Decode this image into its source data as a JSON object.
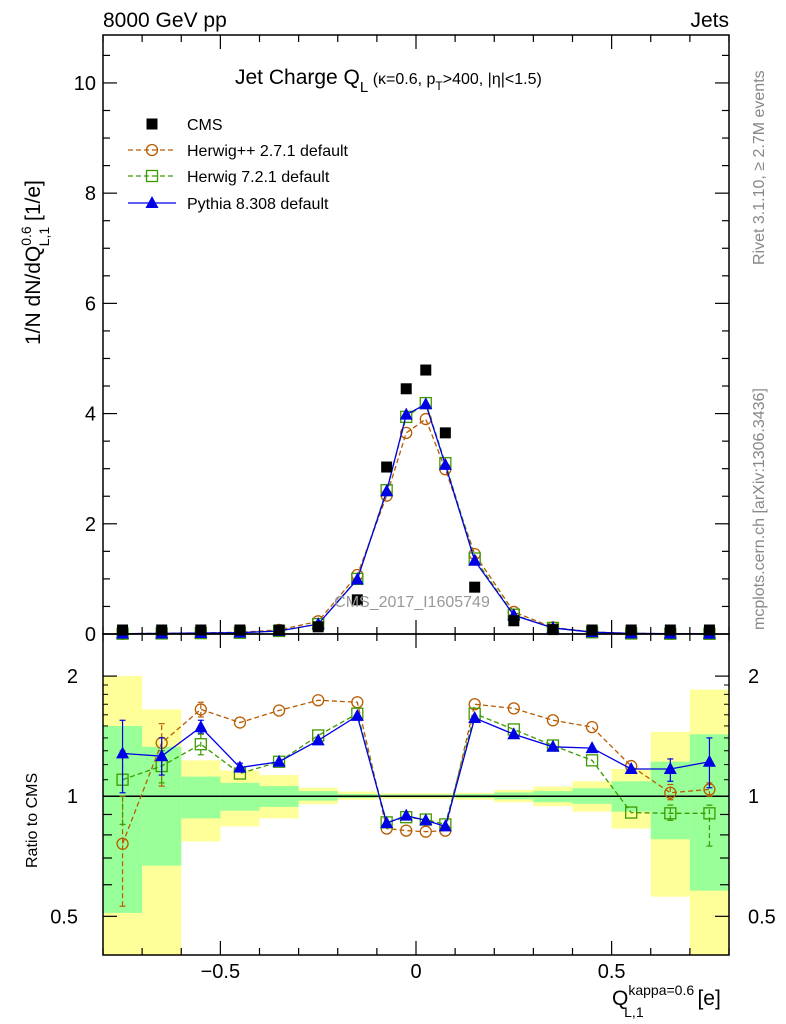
{
  "header": {
    "left": "8000 GeV pp",
    "right": "Jets"
  },
  "side": {
    "rivet": "Rivet 3.1.10, ≥ 2.7M events",
    "mcplots": "mcplots.cern.ch [arXiv:1306.3436]"
  },
  "watermark": "CMS_2017_I1605749",
  "colors": {
    "cms": "#000000",
    "herwigpp": "#b85c00",
    "herwig7": "#3c9a00",
    "pythia": "#0000e6",
    "band_total": "#ffff99",
    "band_stat": "#99ff99"
  },
  "chart_data": {
    "type": "scatter",
    "title_parts": {
      "a": "Jet Charge Q",
      "a_sub": "L",
      "b": " (κ=0.6, p",
      "b_sub": "T",
      "c": ">400, |η|<1.5)"
    },
    "ylabel_parts": {
      "a": "1/N dN/dQ",
      "sup": "0.6",
      "sub": "L,1",
      "b": " [1/e]"
    },
    "xlabel_parts": {
      "a": "Q",
      "sup": "kappa=0.6",
      "sub": "L,1",
      "b": " [e]"
    },
    "ratio_ylabel": "Ratio to CMS",
    "xlim": [
      -0.8,
      0.8
    ],
    "ylim": [
      0,
      10.87
    ],
    "ratio_ylim": [
      0.4,
      2.55
    ],
    "ratio_scale": "log",
    "x_ticks": [
      "−0.5",
      "0",
      "0.5"
    ],
    "x_tick_values": [
      -0.5,
      0,
      0.5
    ],
    "y_ticks": [
      "0",
      "2",
      "4",
      "6",
      "8",
      "10"
    ],
    "y_tick_values": [
      0,
      2,
      4,
      6,
      8,
      10
    ],
    "ratio_ticks": [
      "2",
      "1",
      "0.5"
    ],
    "ratio_tick_values": [
      2,
      1,
      0.5
    ],
    "legend_placement": "top-left",
    "bin_edges": [
      -0.8,
      -0.7,
      -0.6,
      -0.5,
      -0.4,
      -0.3,
      -0.2,
      -0.1,
      -0.05,
      0,
      0.05,
      0.1,
      0.2,
      0.3,
      0.4,
      0.5,
      0.6,
      0.7,
      0.8
    ],
    "data": {
      "name": "CMS",
      "values": [
        0.005,
        0.008,
        0.012,
        0.02,
        0.045,
        0.13,
        0.62,
        3.03,
        4.45,
        4.79,
        3.65,
        0.85,
        0.24,
        0.08,
        0.025,
        0.01,
        0.005,
        0.003
      ]
    },
    "series": [
      {
        "key": "herwigpp",
        "name": "Herwig++ 2.7.1 default",
        "marker": "circle",
        "dashed": true,
        "values": [
          0.004,
          0.011,
          0.02,
          0.031,
          0.074,
          0.23,
          1.07,
          2.51,
          3.65,
          3.9,
          2.99,
          1.45,
          0.4,
          0.12,
          0.037,
          0.012,
          0.005,
          0.003
        ],
        "ratio": [
          0.76,
          1.36,
          1.65,
          1.53,
          1.64,
          1.74,
          1.72,
          0.83,
          0.82,
          0.815,
          0.82,
          1.7,
          1.66,
          1.55,
          1.49,
          1.19,
          1.02,
          1.04
        ],
        "ratio_err": [
          [
            0.53,
            1.0
          ],
          [
            1.06,
            1.52
          ],
          [
            1.58,
            1.72
          ],
          null,
          null,
          null,
          null,
          null,
          null,
          null,
          null,
          null,
          null,
          null,
          null,
          null,
          [
            0.98,
            1.07
          ],
          [
            1.0,
            1.08
          ]
        ]
      },
      {
        "key": "herwig7",
        "name": "Herwig 7.2.1 default",
        "marker": "square",
        "dashed": true,
        "values": [
          0.006,
          0.01,
          0.016,
          0.023,
          0.055,
          0.18,
          1.0,
          2.61,
          3.94,
          4.19,
          3.1,
          1.37,
          0.35,
          0.11,
          0.031,
          0.009,
          0.0045,
          0.0027
        ],
        "ratio": [
          1.1,
          1.19,
          1.35,
          1.14,
          1.22,
          1.42,
          1.61,
          0.86,
          0.886,
          0.874,
          0.85,
          1.61,
          1.47,
          1.34,
          1.23,
          0.91,
          0.906,
          0.906
        ],
        "ratio_err": [
          [
            0.85,
            1.3
          ],
          [
            1.08,
            1.3
          ],
          [
            1.27,
            1.43
          ],
          null,
          null,
          null,
          null,
          null,
          null,
          null,
          null,
          null,
          null,
          null,
          null,
          null,
          [
            0.87,
            0.95
          ],
          [
            0.75,
            0.95
          ]
        ]
      },
      {
        "key": "pythia",
        "name": "Pythia 8.308 default",
        "marker": "triangle",
        "dashed": false,
        "values": [
          0.006,
          0.01,
          0.018,
          0.024,
          0.055,
          0.18,
          0.99,
          2.59,
          3.98,
          4.17,
          3.07,
          1.33,
          0.34,
          0.11,
          0.033,
          0.012,
          0.006,
          0.004
        ],
        "ratio": [
          1.28,
          1.26,
          1.49,
          1.18,
          1.22,
          1.38,
          1.59,
          0.856,
          0.894,
          0.87,
          0.84,
          1.57,
          1.43,
          1.33,
          1.32,
          1.17,
          1.17,
          1.22
        ],
        "ratio_err": [
          [
            1.02,
            1.55
          ],
          [
            1.13,
            1.4
          ],
          [
            1.44,
            1.55
          ],
          [
            1.15,
            1.21
          ],
          null,
          null,
          null,
          null,
          null,
          null,
          null,
          null,
          null,
          null,
          null,
          null,
          [
            1.09,
            1.24
          ],
          [
            1.05,
            1.4
          ]
        ]
      }
    ],
    "band_total": [
      [
        0.4,
        2.0
      ],
      [
        0.4,
        1.65
      ],
      [
        0.77,
        1.23
      ],
      [
        0.84,
        1.16
      ],
      [
        0.88,
        1.13
      ],
      [
        0.955,
        1.05
      ],
      [
        0.98,
        1.027
      ],
      [
        0.985,
        1.017
      ],
      [
        0.985,
        1.017
      ],
      [
        0.985,
        1.017
      ],
      [
        0.985,
        1.017
      ],
      [
        0.98,
        1.02
      ],
      [
        0.966,
        1.037
      ],
      [
        0.944,
        1.057
      ],
      [
        0.915,
        1.09
      ],
      [
        0.83,
        1.17
      ],
      [
        0.56,
        1.45
      ],
      [
        0.4,
        1.85
      ]
    ],
    "band_stat": [
      [
        0.51,
        1.5
      ],
      [
        0.67,
        1.33
      ],
      [
        0.88,
        1.12
      ],
      [
        0.92,
        1.08
      ],
      [
        0.94,
        1.06
      ],
      [
        0.975,
        1.03
      ],
      [
        0.99,
        1.013
      ],
      [
        0.994,
        1.01
      ],
      [
        0.994,
        1.01
      ],
      [
        0.994,
        1.01
      ],
      [
        0.994,
        1.01
      ],
      [
        0.99,
        1.013
      ],
      [
        0.982,
        1.022
      ],
      [
        0.966,
        1.03
      ],
      [
        0.957,
        1.047
      ],
      [
        0.915,
        1.09
      ],
      [
        0.78,
        1.22
      ],
      [
        0.58,
        1.43
      ]
    ]
  }
}
